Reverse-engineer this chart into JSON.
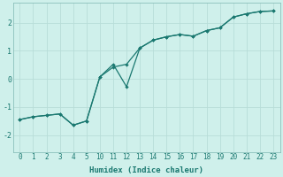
{
  "xlabel": "Humidex (Indice chaleur)",
  "bg_color": "#cff0eb",
  "line_color": "#1a7870",
  "grid_color": "#b8ddd8",
  "spine_color": "#8bbfba",
  "xlim": [
    -0.5,
    23.5
  ],
  "ylim": [
    -2.6,
    2.7
  ],
  "xticks": [
    0,
    1,
    2,
    3,
    4,
    5,
    10,
    11,
    12,
    13,
    14,
    15,
    16,
    17,
    18,
    19,
    20,
    21,
    22,
    23
  ],
  "yticks": [
    -2,
    -1,
    0,
    1,
    2
  ],
  "line1_x": [
    0,
    1,
    2,
    3,
    4,
    5,
    10,
    11,
    12,
    13,
    14,
    15,
    16,
    17,
    18,
    19,
    20,
    21,
    22,
    23
  ],
  "line1_y": [
    -1.45,
    -1.35,
    -1.3,
    -1.25,
    -1.65,
    -1.5,
    0.07,
    0.52,
    -0.28,
    1.1,
    1.38,
    1.5,
    1.58,
    1.52,
    1.72,
    1.82,
    2.2,
    2.32,
    2.4,
    2.42
  ],
  "line2_x": [
    0,
    1,
    2,
    3,
    4,
    5,
    10,
    11,
    12,
    13,
    14,
    15,
    16,
    17,
    18,
    19,
    20,
    21,
    22,
    23
  ],
  "line2_y": [
    -1.45,
    -1.35,
    -1.3,
    -1.25,
    -1.65,
    -1.5,
    0.07,
    0.42,
    0.52,
    1.1,
    1.38,
    1.5,
    1.58,
    1.52,
    1.72,
    1.82,
    2.2,
    2.32,
    2.4,
    2.42
  ],
  "tick_fontsize": 5.5,
  "xlabel_fontsize": 6.5
}
